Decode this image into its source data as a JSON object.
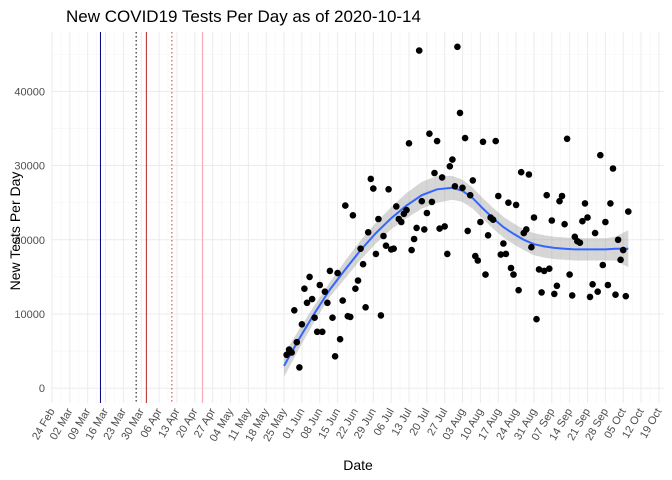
{
  "chart_data": {
    "type": "scatter",
    "title": "New COVID19 Tests Per Day as of 2020-10-14",
    "xlabel": "Date",
    "ylabel": "New Tests Per Day",
    "x_range_days": [
      0,
      240
    ],
    "ylim": [
      -2000,
      48000
    ],
    "y_ticks": [
      0,
      10000,
      20000,
      30000,
      40000
    ],
    "x_ticks": [
      {
        "label": "24 Feb",
        "day": 0
      },
      {
        "label": "02 Mar",
        "day": 7
      },
      {
        "label": "09 Mar",
        "day": 14
      },
      {
        "label": "16 Mar",
        "day": 21
      },
      {
        "label": "23 Mar",
        "day": 28
      },
      {
        "label": "30 Mar",
        "day": 35
      },
      {
        "label": "06 Apr",
        "day": 42
      },
      {
        "label": "13 Apr",
        "day": 49
      },
      {
        "label": "20 Apr",
        "day": 56
      },
      {
        "label": "27 Apr",
        "day": 63
      },
      {
        "label": "04 May",
        "day": 70
      },
      {
        "label": "11 May",
        "day": 77
      },
      {
        "label": "18 May",
        "day": 84
      },
      {
        "label": "25 May",
        "day": 91
      },
      {
        "label": "01 Jun",
        "day": 98
      },
      {
        "label": "08 Jun",
        "day": 105
      },
      {
        "label": "15 Jun",
        "day": 112
      },
      {
        "label": "22 Jun",
        "day": 119
      },
      {
        "label": "29 Jun",
        "day": 126
      },
      {
        "label": "06 Jul",
        "day": 133
      },
      {
        "label": "13 Jul",
        "day": 140
      },
      {
        "label": "20 Jul",
        "day": 147
      },
      {
        "label": "27 Jul",
        "day": 154
      },
      {
        "label": "03 Aug",
        "day": 161
      },
      {
        "label": "10 Aug",
        "day": 168
      },
      {
        "label": "17 Aug",
        "day": 175
      },
      {
        "label": "24 Aug",
        "day": 182
      },
      {
        "label": "31 Aug",
        "day": 189
      },
      {
        "label": "07 Sep",
        "day": 196
      },
      {
        "label": "14 Sep",
        "day": 203
      },
      {
        "label": "21 Sep",
        "day": 210
      },
      {
        "label": "28 Sep",
        "day": 217
      },
      {
        "label": "05 Oct",
        "day": 224
      },
      {
        "label": "12 Oct",
        "day": 231
      },
      {
        "label": "19 Oct",
        "day": 238
      }
    ],
    "vlines": [
      {
        "day": 19,
        "color": "#000080",
        "style": "solid"
      },
      {
        "day": 33,
        "color": "#000000",
        "style": "dotted"
      },
      {
        "day": 37,
        "color": "#b22222",
        "style": "solid"
      },
      {
        "day": 47,
        "color": "#d73027",
        "style": "dotted"
      },
      {
        "day": 59,
        "color": "#f4a6b0",
        "style": "solid"
      }
    ],
    "points": [
      [
        92,
        4500
      ],
      [
        93,
        5200
      ],
      [
        94,
        4800
      ],
      [
        95,
        10500
      ],
      [
        96,
        6200
      ],
      [
        97,
        2800
      ],
      [
        98,
        8600
      ],
      [
        99,
        13400
      ],
      [
        100,
        11500
      ],
      [
        101,
        15000
      ],
      [
        102,
        12000
      ],
      [
        103,
        9500
      ],
      [
        104,
        7600
      ],
      [
        105,
        13900
      ],
      [
        106,
        7600
      ],
      [
        107,
        13000
      ],
      [
        108,
        11500
      ],
      [
        109,
        15800
      ],
      [
        110,
        9500
      ],
      [
        111,
        4300
      ],
      [
        112,
        15500
      ],
      [
        113,
        6600
      ],
      [
        114,
        11800
      ],
      [
        115,
        24600
      ],
      [
        116,
        9700
      ],
      [
        117,
        9600
      ],
      [
        118,
        23300
      ],
      [
        119,
        13400
      ],
      [
        120,
        14500
      ],
      [
        121,
        18800
      ],
      [
        122,
        16700
      ],
      [
        123,
        10900
      ],
      [
        124,
        21000
      ],
      [
        125,
        28200
      ],
      [
        126,
        26900
      ],
      [
        127,
        18100
      ],
      [
        128,
        22800
      ],
      [
        129,
        9800
      ],
      [
        130,
        20500
      ],
      [
        131,
        19200
      ],
      [
        132,
        26800
      ],
      [
        133,
        18700
      ],
      [
        134,
        18800
      ],
      [
        135,
        24500
      ],
      [
        136,
        22800
      ],
      [
        137,
        22400
      ],
      [
        138,
        23500
      ],
      [
        139,
        24000
      ],
      [
        140,
        33000
      ],
      [
        141,
        18600
      ],
      [
        142,
        20100
      ],
      [
        143,
        21600
      ],
      [
        144,
        45500
      ],
      [
        145,
        25200
      ],
      [
        146,
        21400
      ],
      [
        147,
        23600
      ],
      [
        148,
        34300
      ],
      [
        149,
        25100
      ],
      [
        150,
        29000
      ],
      [
        151,
        33300
      ],
      [
        152,
        21500
      ],
      [
        153,
        28400
      ],
      [
        154,
        21800
      ],
      [
        155,
        18100
      ],
      [
        156,
        29900
      ],
      [
        157,
        30800
      ],
      [
        158,
        27200
      ],
      [
        159,
        46000
      ],
      [
        160,
        37100
      ],
      [
        161,
        27000
      ],
      [
        162,
        33700
      ],
      [
        163,
        21200
      ],
      [
        164,
        26000
      ],
      [
        165,
        28000
      ],
      [
        166,
        17800
      ],
      [
        167,
        17200
      ],
      [
        168,
        22400
      ],
      [
        169,
        33200
      ],
      [
        170,
        15300
      ],
      [
        171,
        20600
      ],
      [
        172,
        23000
      ],
      [
        173,
        22700
      ],
      [
        174,
        33300
      ],
      [
        175,
        25900
      ],
      [
        176,
        18000
      ],
      [
        177,
        19500
      ],
      [
        178,
        18100
      ],
      [
        179,
        25000
      ],
      [
        180,
        16200
      ],
      [
        181,
        15300
      ],
      [
        182,
        24700
      ],
      [
        183,
        13200
      ],
      [
        184,
        29100
      ],
      [
        185,
        20900
      ],
      [
        186,
        21400
      ],
      [
        187,
        28800
      ],
      [
        188,
        19000
      ],
      [
        189,
        23000
      ],
      [
        190,
        9300
      ],
      [
        191,
        16000
      ],
      [
        192,
        12900
      ],
      [
        193,
        15800
      ],
      [
        194,
        26000
      ],
      [
        195,
        16100
      ],
      [
        196,
        22600
      ],
      [
        197,
        12700
      ],
      [
        198,
        13800
      ],
      [
        199,
        25200
      ],
      [
        200,
        25900
      ],
      [
        201,
        22100
      ],
      [
        202,
        33600
      ],
      [
        203,
        15300
      ],
      [
        204,
        12500
      ],
      [
        205,
        20400
      ],
      [
        206,
        19800
      ],
      [
        207,
        19600
      ],
      [
        208,
        22500
      ],
      [
        209,
        24900
      ],
      [
        210,
        23000
      ],
      [
        211,
        12300
      ],
      [
        212,
        14000
      ],
      [
        213,
        20900
      ],
      [
        214,
        13000
      ],
      [
        215,
        31400
      ],
      [
        216,
        16600
      ],
      [
        217,
        22400
      ],
      [
        218,
        13900
      ],
      [
        219,
        24900
      ],
      [
        220,
        29600
      ],
      [
        221,
        12600
      ],
      [
        222,
        20000
      ],
      [
        223,
        17300
      ],
      [
        224,
        18600
      ],
      [
        225,
        12400
      ],
      [
        226,
        23800
      ]
    ],
    "smooth": [
      [
        91,
        3000
      ],
      [
        97,
        6700
      ],
      [
        103,
        10100
      ],
      [
        109,
        13300
      ],
      [
        115,
        16000
      ],
      [
        121,
        18600
      ],
      [
        127,
        20900
      ],
      [
        133,
        22900
      ],
      [
        139,
        24600
      ],
      [
        145,
        26000
      ],
      [
        151,
        26800
      ],
      [
        157,
        27000
      ],
      [
        161,
        26600
      ],
      [
        165,
        25600
      ],
      [
        169,
        24200
      ],
      [
        173,
        22900
      ],
      [
        177,
        21700
      ],
      [
        181,
        20800
      ],
      [
        185,
        20000
      ],
      [
        189,
        19400
      ],
      [
        193,
        19100
      ],
      [
        197,
        18900
      ],
      [
        201,
        18800
      ],
      [
        205,
        18700
      ],
      [
        209,
        18700
      ],
      [
        213,
        18700
      ],
      [
        217,
        18700
      ],
      [
        221,
        18800
      ],
      [
        226,
        18800
      ]
    ],
    "band_upper": [
      [
        91,
        4500
      ],
      [
        97,
        8000
      ],
      [
        103,
        11200
      ],
      [
        109,
        14300
      ],
      [
        115,
        17200
      ],
      [
        121,
        19900
      ],
      [
        127,
        22300
      ],
      [
        133,
        24400
      ],
      [
        139,
        26300
      ],
      [
        145,
        27800
      ],
      [
        151,
        28600
      ],
      [
        157,
        28600
      ],
      [
        161,
        28100
      ],
      [
        165,
        27000
      ],
      [
        169,
        25600
      ],
      [
        173,
        24300
      ],
      [
        177,
        23100
      ],
      [
        181,
        22200
      ],
      [
        185,
        21400
      ],
      [
        189,
        20900
      ],
      [
        193,
        20600
      ],
      [
        197,
        20400
      ],
      [
        201,
        20300
      ],
      [
        205,
        20200
      ],
      [
        209,
        20200
      ],
      [
        213,
        20200
      ],
      [
        217,
        20200
      ],
      [
        221,
        20400
      ],
      [
        226,
        21300
      ]
    ],
    "band_lower": [
      [
        91,
        1500
      ],
      [
        97,
        5400
      ],
      [
        103,
        9000
      ],
      [
        109,
        12300
      ],
      [
        115,
        14800
      ],
      [
        121,
        17300
      ],
      [
        127,
        19500
      ],
      [
        133,
        21400
      ],
      [
        139,
        22900
      ],
      [
        145,
        24200
      ],
      [
        151,
        25000
      ],
      [
        157,
        25400
      ],
      [
        161,
        25100
      ],
      [
        165,
        24200
      ],
      [
        169,
        22800
      ],
      [
        173,
        21500
      ],
      [
        177,
        20300
      ],
      [
        181,
        19400
      ],
      [
        185,
        18600
      ],
      [
        189,
        17900
      ],
      [
        193,
        17600
      ],
      [
        197,
        17400
      ],
      [
        201,
        17300
      ],
      [
        205,
        17200
      ],
      [
        209,
        17200
      ],
      [
        213,
        17200
      ],
      [
        217,
        17200
      ],
      [
        221,
        17200
      ],
      [
        226,
        16300
      ]
    ],
    "colors": {
      "point": "#000000",
      "smooth_line": "#3366ff",
      "band": "#999999",
      "grid_major": "#ebebeb",
      "grid_minor": "#f5f5f5"
    }
  }
}
